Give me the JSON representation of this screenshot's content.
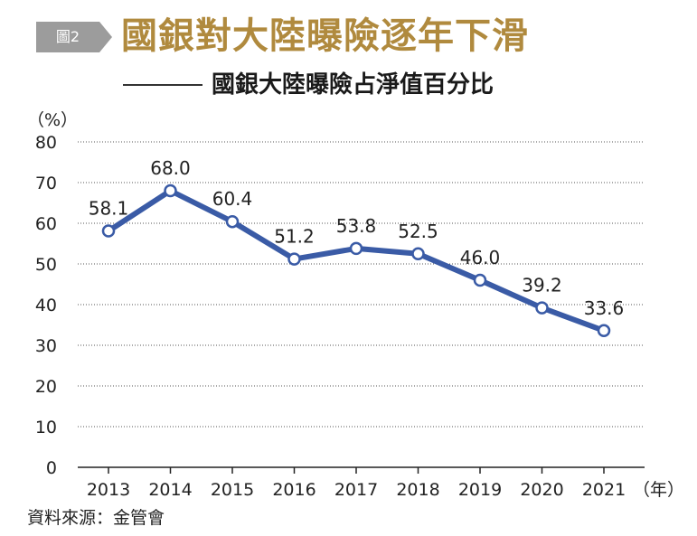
{
  "badge": "圖2",
  "title": "國銀對大陸曝險逐年下滑",
  "subtitle": "國銀大陸曝險占淨值百分比",
  "y_unit": "（%）",
  "x_unit": "（年）",
  "source": "資料來源：金管會",
  "colors": {
    "line": "#3a5ba6",
    "title": "#b08a3e",
    "badge": "#9c9c9c",
    "grid": "#555555"
  },
  "chart_data": {
    "type": "line",
    "categories": [
      "2013",
      "2014",
      "2015",
      "2016",
      "2017",
      "2018",
      "2019",
      "2020",
      "2021"
    ],
    "values": [
      58.1,
      68.0,
      60.4,
      51.2,
      53.8,
      52.5,
      46.0,
      39.2,
      33.6
    ],
    "data_labels": [
      "58.1",
      "68.0",
      "60.4",
      "51.2",
      "53.8",
      "52.5",
      "46.0",
      "39.2",
      "33.6"
    ],
    "y_ticks": [
      0,
      10,
      20,
      30,
      40,
      50,
      60,
      70,
      80
    ],
    "ylim": [
      0,
      80
    ],
    "grid": true,
    "legend": "none"
  }
}
